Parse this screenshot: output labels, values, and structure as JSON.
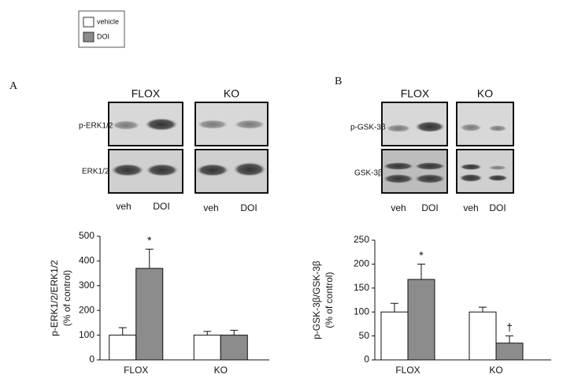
{
  "figure": {
    "panels": [
      "A",
      "B"
    ],
    "blots": [
      {
        "groups": [
          "FLOX",
          "KO"
        ],
        "rows": [
          "p-ERK1/2",
          "ERK1/2"
        ],
        "lanes": [
          "veh",
          "DOI",
          "veh",
          "DOI"
        ]
      },
      {
        "groups": [
          "FLOX",
          "KO"
        ],
        "rows": [
          "p-GSK-3β",
          "GSK-3β"
        ],
        "lanes": [
          "veh",
          "DOI",
          "veh",
          "DOI"
        ]
      }
    ]
  },
  "chart_data": [
    {
      "type": "bar",
      "ylabel": [
        "p-ERK1/2/ERK1/2",
        "(% of control)"
      ],
      "categories": [
        "FLOX",
        "KO"
      ],
      "series": [
        {
          "name": "vehicle",
          "color": "#ffffff",
          "values": [
            100,
            100
          ],
          "errors": [
            30,
            15
          ]
        },
        {
          "name": "DOI",
          "color": "#8c8c8c",
          "values": [
            370,
            100
          ],
          "errors": [
            78,
            20
          ],
          "annotations": [
            "*",
            null
          ]
        }
      ],
      "ylim": [
        0,
        500
      ],
      "yticks": [
        0,
        100,
        200,
        300,
        400,
        500
      ]
    },
    {
      "type": "bar",
      "ylabel": [
        "p-GSK-3β/GSK-3β",
        "(% of control)"
      ],
      "categories": [
        "FLOX",
        "KO"
      ],
      "series": [
        {
          "name": "vehicle",
          "color": "#ffffff",
          "values": [
            100,
            100
          ],
          "errors": [
            18,
            10
          ]
        },
        {
          "name": "DOI",
          "color": "#8c8c8c",
          "values": [
            168,
            35
          ],
          "errors": [
            32,
            15
          ],
          "annotations": [
            "*",
            "†"
          ]
        }
      ],
      "ylim": [
        0,
        250
      ],
      "yticks": [
        0,
        50,
        100,
        150,
        200,
        250
      ]
    }
  ]
}
